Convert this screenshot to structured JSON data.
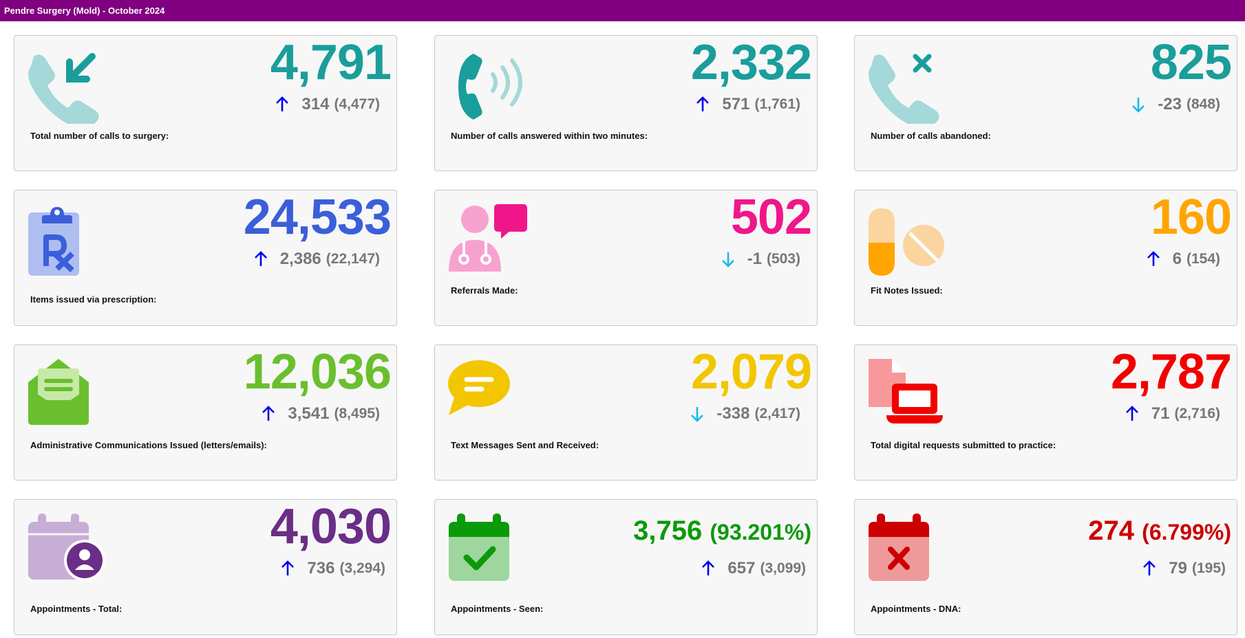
{
  "title": "Pendre Surgery (Mold) - October 2024",
  "cards": [
    {
      "value": "4,791",
      "change": "314",
      "previous": "(4,477)",
      "trend": "up",
      "label": "Total number of calls to surgery:",
      "color": "#1a9e9b",
      "icon": "incoming-call-icon"
    },
    {
      "value": "2,332",
      "change": "571",
      "previous": "(1,761)",
      "trend": "up",
      "label": "Number of calls answered within two minutes:",
      "color": "#1a9e9b",
      "icon": "phone-ringing-icon"
    },
    {
      "value": "825",
      "change": "-23",
      "previous": "(848)",
      "trend": "down",
      "label": "Number of calls abandoned:",
      "color": "#1a9e9b",
      "icon": "missed-call-icon"
    },
    {
      "value": "24,533",
      "change": "2,386",
      "previous": "(22,147)",
      "trend": "up",
      "label": "Items issued via prescription:",
      "color": "#3a5fd9",
      "icon": "prescription-icon"
    },
    {
      "value": "502",
      "change": "-1",
      "previous": "(503)",
      "trend": "down",
      "label": "Referrals Made:",
      "color": "#f0168a",
      "icon": "doctor-speech-icon"
    },
    {
      "value": "160",
      "change": "6",
      "previous": "(154)",
      "trend": "up",
      "label": "Fit Notes Issued:",
      "color": "#ffa500",
      "icon": "pills-icon"
    },
    {
      "value": "12,036",
      "change": "3,541",
      "previous": "(8,495)",
      "trend": "up",
      "label": "Administrative Communications Issued (letters/emails):",
      "color": "#6abf2e",
      "icon": "open-envelope-icon"
    },
    {
      "value": "2,079",
      "change": "-338",
      "previous": "(2,417)",
      "trend": "down",
      "label": "Text Messages Sent and Received:",
      "color": "#f2c600",
      "icon": "speech-bubble-icon"
    },
    {
      "value": "2,787",
      "change": "71",
      "previous": "(2,716)",
      "trend": "up",
      "label": "Total digital requests submitted to practice:",
      "color": "#f20000",
      "icon": "laptop-document-icon"
    },
    {
      "value": "4,030",
      "change": "736",
      "previous": "(3,294)",
      "trend": "up",
      "label": "Appointments - Total:",
      "color": "#6a2e86",
      "icon": "calendar-user-icon"
    },
    {
      "value": "3,756",
      "pct": "(93.201%)",
      "change": "657",
      "previous": "(3,099)",
      "trend": "up",
      "label": "Appointments - Seen:",
      "color": "#0a9a0a",
      "icon": "calendar-check-icon"
    },
    {
      "value": "274",
      "pct": "(6.799%)",
      "change": "79",
      "previous": "(195)",
      "trend": "up",
      "label": "Appointments - DNA:",
      "color": "#cc0000",
      "icon": "calendar-cross-icon"
    }
  ],
  "colors": {
    "up_arrow": "#0000ee",
    "down_arrow": "#1ab8e8"
  }
}
